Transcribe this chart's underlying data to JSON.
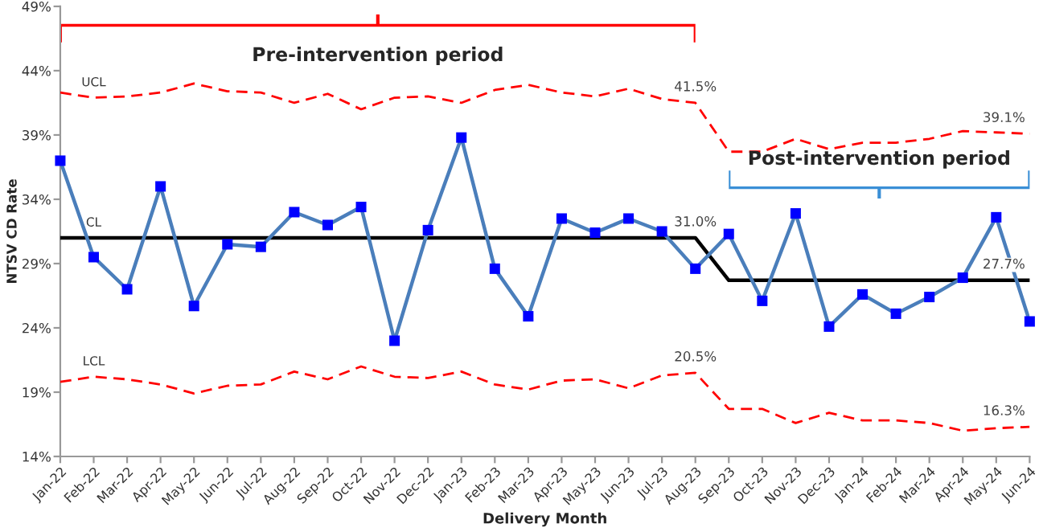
{
  "chart_data": {
    "type": "line",
    "xlabel": "Delivery Month",
    "ylabel": "NTSV CD Rate",
    "categories": [
      "Jan-22",
      "Feb-22",
      "Mar-22",
      "Apr-22",
      "May-22",
      "Jun-22",
      "Jul-22",
      "Aug-22",
      "Sep-22",
      "Oct-22",
      "Nov-22",
      "Dec-22",
      "Jan-23",
      "Feb-23",
      "Mar-23",
      "Apr-23",
      "May-23",
      "Jun-23",
      "Jul-23",
      "Aug-23",
      "Sep-23",
      "Oct-23",
      "Nov-23",
      "Dec-23",
      "Jan-24",
      "Feb-24",
      "Mar-24",
      "Apr-24",
      "May-24",
      "Jun-24"
    ],
    "series": [
      {
        "name": "UCL",
        "color": "#ff0000",
        "line_style": "dashed",
        "marker": "none",
        "values": [
          42.3,
          41.9,
          42.0,
          42.3,
          43.0,
          42.4,
          42.3,
          41.5,
          42.2,
          41.0,
          41.9,
          42.0,
          41.5,
          42.5,
          42.9,
          42.3,
          42.0,
          42.6,
          41.8,
          41.5,
          37.7,
          37.7,
          38.7,
          37.9,
          38.4,
          38.4,
          38.7,
          39.3,
          39.2,
          39.1
        ],
        "value_labels": [
          null,
          null,
          null,
          null,
          null,
          null,
          null,
          null,
          null,
          null,
          null,
          null,
          null,
          null,
          null,
          null,
          null,
          null,
          null,
          "41.5%",
          null,
          null,
          null,
          null,
          null,
          null,
          null,
          null,
          null,
          "39.1%"
        ]
      },
      {
        "name": "LCL",
        "color": "#ff0000",
        "line_style": "dashed",
        "marker": "none",
        "values": [
          19.8,
          20.2,
          20.0,
          19.6,
          18.9,
          19.5,
          19.6,
          20.6,
          20.0,
          21.0,
          20.2,
          20.1,
          20.6,
          19.6,
          19.2,
          19.9,
          20.0,
          19.3,
          20.3,
          20.5,
          17.7,
          17.7,
          16.6,
          17.4,
          16.8,
          16.8,
          16.6,
          16.0,
          16.2,
          16.3
        ],
        "value_labels": [
          null,
          null,
          null,
          null,
          null,
          null,
          null,
          null,
          null,
          null,
          null,
          null,
          null,
          null,
          null,
          null,
          null,
          null,
          null,
          "20.5%",
          null,
          null,
          null,
          null,
          null,
          null,
          null,
          null,
          null,
          "16.3%"
        ]
      },
      {
        "name": "CL",
        "color": "#000000",
        "line_style": "solid",
        "marker": "none",
        "values": [
          31.0,
          31.0,
          31.0,
          31.0,
          31.0,
          31.0,
          31.0,
          31.0,
          31.0,
          31.0,
          31.0,
          31.0,
          31.0,
          31.0,
          31.0,
          31.0,
          31.0,
          31.0,
          31.0,
          31.0,
          27.7,
          27.7,
          27.7,
          27.7,
          27.7,
          27.7,
          27.7,
          27.7,
          27.7,
          27.7
        ],
        "value_labels": [
          null,
          null,
          null,
          null,
          null,
          null,
          null,
          null,
          null,
          null,
          null,
          null,
          null,
          null,
          null,
          null,
          null,
          null,
          null,
          "31.0%",
          null,
          null,
          null,
          null,
          null,
          null,
          null,
          null,
          null,
          "27.7%"
        ]
      },
      {
        "color": "#0000ff",
        "line_style": "solid",
        "marker": "square",
        "values": [
          37.0,
          29.5,
          27.0,
          35.0,
          25.7,
          30.5,
          30.3,
          33.0,
          32.0,
          33.4,
          23.0,
          31.6,
          38.8,
          28.6,
          24.9,
          32.5,
          31.4,
          32.5,
          31.5,
          28.6,
          31.3,
          26.1,
          32.9,
          24.1,
          26.6,
          25.1,
          26.4,
          27.9,
          32.6,
          24.5
        ]
      }
    ],
    "annotations": [
      "Pre-intervention period",
      "Post-intervention period"
    ],
    "ylim": [
      14,
      49
    ],
    "yticks": [
      {
        "value": 14,
        "label": "14%"
      },
      {
        "value": 19,
        "label": "19%"
      },
      {
        "value": 24,
        "label": "24%"
      },
      {
        "value": 29,
        "label": "29%"
      },
      {
        "value": 34,
        "label": "34%"
      },
      {
        "value": 39,
        "label": "39%"
      },
      {
        "value": 44,
        "label": "44%"
      },
      {
        "value": 49,
        "label": "49%"
      }
    ],
    "grid": false,
    "legend": false
  }
}
